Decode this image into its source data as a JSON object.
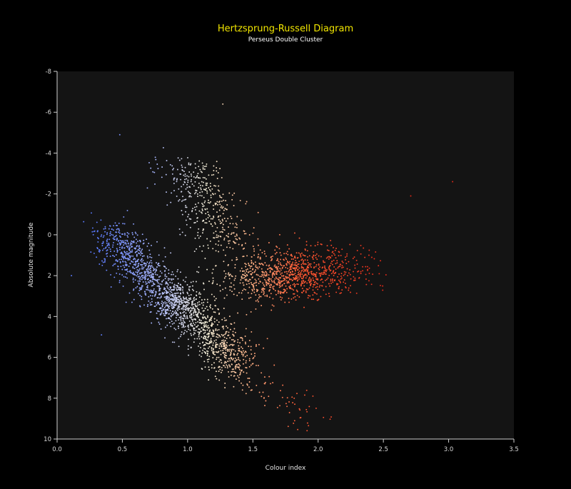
{
  "chart_data": {
    "type": "scatter",
    "title": "Hertzsprung-Russell Diagram",
    "subtitle": "Perseus Double Cluster",
    "xlabel": "Colour index",
    "ylabel": "Absolute magnitude",
    "xlim": [
      0.0,
      3.5
    ],
    "ylim": [
      -8,
      10
    ],
    "y_inverted": true,
    "x_ticks": [
      "0.0",
      "0.5",
      "1.0",
      "1.5",
      "2.0",
      "2.5",
      "3.0",
      "3.5"
    ],
    "y_ticks": [
      "-8",
      "-6",
      "-4",
      "-2",
      "0",
      "2",
      "4",
      "6",
      "8",
      "10"
    ],
    "grid": false,
    "background_color": "#141414",
    "colormap": [
      "#5b7bff",
      "#aab8ff",
      "#f4eed6",
      "#ffb88c",
      "#ff5a33",
      "#e52a18"
    ],
    "point_groups": [
      {
        "region": "main-sequence-upper",
        "count": 950,
        "x_range": [
          0.4,
          1.0
        ],
        "y_range": [
          0.0,
          4.0
        ]
      },
      {
        "region": "main-sequence-lower",
        "count": 700,
        "x_range": [
          0.9,
          1.4
        ],
        "y_range": [
          3.0,
          6.5
        ]
      },
      {
        "region": "giant-branch",
        "count": 400,
        "x_range": [
          0.7,
          1.3
        ],
        "y_range": [
          -3.5,
          0.5
        ]
      },
      {
        "region": "red-giant-clump",
        "count": 1000,
        "x_range": [
          1.3,
          2.4
        ],
        "y_range": [
          0.0,
          3.5
        ]
      },
      {
        "region": "red-dwarf-tail",
        "count": 120,
        "x_range": [
          1.2,
          1.9
        ],
        "y_range": [
          5.0,
          9.0
        ]
      }
    ],
    "outliers": [
      {
        "x": 1.27,
        "y": -6.4
      },
      {
        "x": 0.48,
        "y": -4.9
      },
      {
        "x": 3.03,
        "y": -2.6
      },
      {
        "x": 2.71,
        "y": -1.9
      },
      {
        "x": 0.11,
        "y": 2.0
      },
      {
        "x": 0.34,
        "y": 4.9
      },
      {
        "x": 1.82,
        "y": 9.1
      },
      {
        "x": 1.96,
        "y": 7.9
      }
    ]
  }
}
